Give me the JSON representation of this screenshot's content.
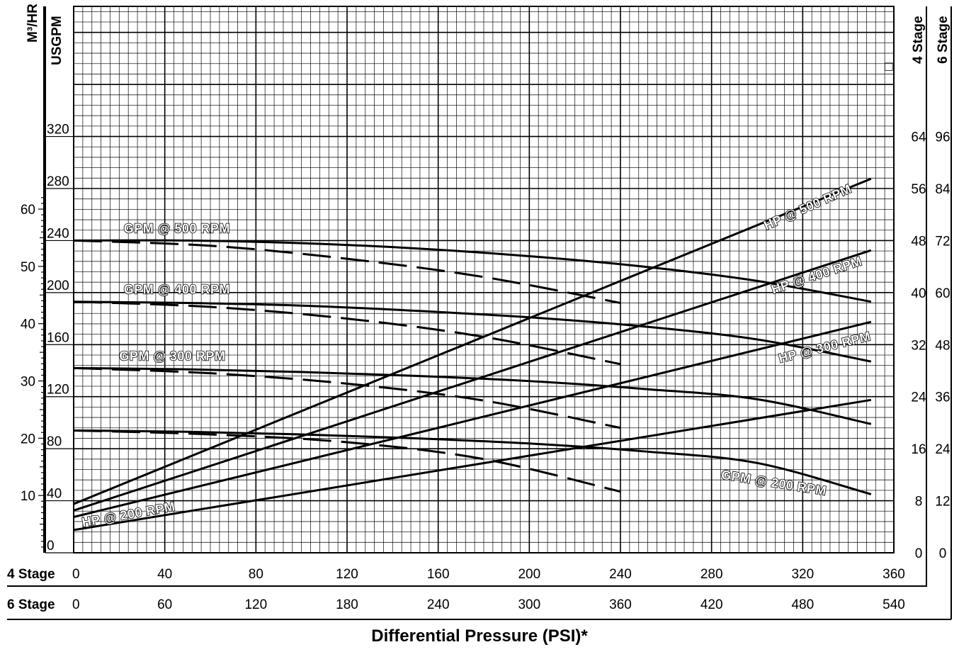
{
  "chart_data": {
    "type": "line",
    "title": "",
    "xlabel": "Differential Pressure (PSI)*",
    "x_axes": [
      {
        "name": "4 Stage",
        "ticks": [
          "0",
          "40",
          "80",
          "120",
          "160",
          "200",
          "240",
          "280",
          "320",
          "360"
        ]
      },
      {
        "name": "6 Stage",
        "ticks": [
          "0",
          "60",
          "120",
          "180",
          "240",
          "300",
          "360",
          "420",
          "480",
          "540"
        ]
      }
    ],
    "left_axes": [
      {
        "label": "M³/HR",
        "ticks": [
          "10",
          "20",
          "30",
          "40",
          "50",
          "60"
        ]
      },
      {
        "label": "USGPM",
        "ticks": [
          "0",
          "40",
          "80",
          "120",
          "160",
          "200",
          "240",
          "280",
          "320"
        ]
      }
    ],
    "right_axes": [
      {
        "label": "4 Stage",
        "ticks": [
          "0",
          "8",
          "16",
          "24",
          "32",
          "40",
          "48",
          "56",
          "64"
        ]
      },
      {
        "label": "6 Stage",
        "ticks": [
          "0",
          "12",
          "24",
          "36",
          "48",
          "60",
          "72",
          "84",
          "96"
        ]
      }
    ],
    "xlim": [
      0,
      360
    ],
    "ylim": [
      0,
      420
    ],
    "grid": true,
    "series": [
      {
        "name": "GPM @ 500 RPM",
        "style": "solid",
        "label_x": 22,
        "label_y": 246,
        "label_angle": 0,
        "x": [
          0,
          50,
          100,
          150,
          200,
          250,
          300,
          350
        ],
        "y": [
          240,
          240,
          238,
          234,
          228,
          220,
          209,
          193
        ]
      },
      {
        "name": "",
        "style": "dashed",
        "x": [
          0,
          60,
          120,
          180,
          240
        ],
        "y": [
          240,
          236,
          226,
          212,
          192
        ]
      },
      {
        "name": "GPM @ 400 RPM",
        "style": "solid",
        "label_x": 22,
        "label_y": 199,
        "label_angle": 0,
        "x": [
          0,
          50,
          100,
          150,
          200,
          250,
          300,
          350
        ],
        "y": [
          193,
          192,
          190,
          186,
          181,
          174,
          164,
          147
        ]
      },
      {
        "name": "",
        "style": "dashed",
        "x": [
          0,
          60,
          120,
          180,
          240
        ],
        "y": [
          193,
          189,
          180,
          166,
          145
        ]
      },
      {
        "name": "GPM @ 300 RPM",
        "style": "solid",
        "label_x": 20,
        "label_y": 148,
        "label_angle": 0,
        "x": [
          0,
          50,
          100,
          150,
          200,
          250,
          300,
          350
        ],
        "y": [
          142,
          141,
          139,
          136,
          132,
          126,
          118,
          99
        ]
      },
      {
        "name": "",
        "style": "dashed",
        "x": [
          0,
          60,
          120,
          180,
          240
        ],
        "y": [
          142,
          138,
          130,
          117,
          96
        ]
      },
      {
        "name": "GPM @ 200 RPM",
        "style": "solid",
        "label_x": 284,
        "label_y": 57,
        "label_angle": 9,
        "x": [
          0,
          50,
          100,
          150,
          200,
          250,
          300,
          350
        ],
        "y": [
          94,
          93,
          91,
          88,
          84,
          78,
          69,
          45
        ]
      },
      {
        "name": "",
        "style": "dashed",
        "x": [
          0,
          60,
          120,
          180,
          240
        ],
        "y": [
          94,
          91,
          85,
          72,
          47
        ]
      },
      {
        "name": "HP @ 500 RPM",
        "style": "solid",
        "label_x": 304,
        "label_y": 248,
        "label_angle": -24,
        "x": [
          0,
          350
        ],
        "y": [
          7.5,
          57.5
        ]
      },
      {
        "name": "HP @ 400 RPM",
        "style": "solid",
        "label_x": 307,
        "label_y": 199,
        "label_angle": -18,
        "x": [
          0,
          350
        ],
        "y": [
          6.5,
          46.5
        ]
      },
      {
        "name": "HP @ 300 RPM",
        "style": "solid",
        "label_x": 310,
        "label_y": 146,
        "label_angle": -14,
        "x": [
          0,
          350
        ],
        "y": [
          5.5,
          35.5
        ]
      },
      {
        "name": "HP @ 200 RPM",
        "style": "solid",
        "label_x": 4,
        "label_y": 20,
        "label_angle": -10,
        "x": [
          0,
          350
        ],
        "y": [
          3.5,
          23.5
        ]
      }
    ],
    "marker": "□"
  }
}
